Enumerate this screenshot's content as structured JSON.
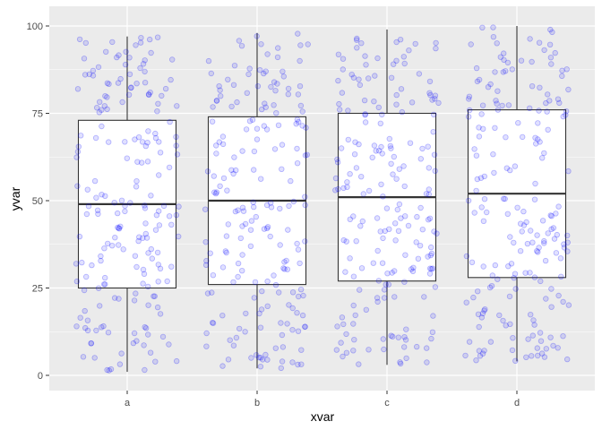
{
  "chart_data": {
    "type": "boxplot",
    "title": "",
    "xlabel": "xvar",
    "ylabel": "yvar",
    "categories": [
      "a",
      "b",
      "c",
      "d"
    ],
    "ylim": [
      -4,
      104
    ],
    "yticks": [
      0,
      25,
      50,
      75,
      100
    ],
    "grid": true,
    "background": "#EBEBEB",
    "gridline_color": "#FFFFFF",
    "point_color": "#0000FF",
    "point_alpha": 0.15,
    "box_fill": "#FFFFFF",
    "box_stroke": "#333333",
    "boxes": [
      {
        "category": "a",
        "lower_whisker": 1,
        "q1": 25,
        "median": 49,
        "q3": 73,
        "upper_whisker": 97
      },
      {
        "category": "b",
        "lower_whisker": 2,
        "q1": 26,
        "median": 50,
        "q3": 74,
        "upper_whisker": 98
      },
      {
        "category": "c",
        "lower_whisker": 3,
        "q1": 27,
        "median": 51,
        "q3": 75,
        "upper_whisker": 99
      },
      {
        "category": "d",
        "lower_whisker": 4,
        "q1": 28,
        "median": 52,
        "q3": 76,
        "upper_whisker": 100
      }
    ],
    "points_per_group": 200,
    "jitter_width": 0.4,
    "y_distribution": "uniform"
  }
}
